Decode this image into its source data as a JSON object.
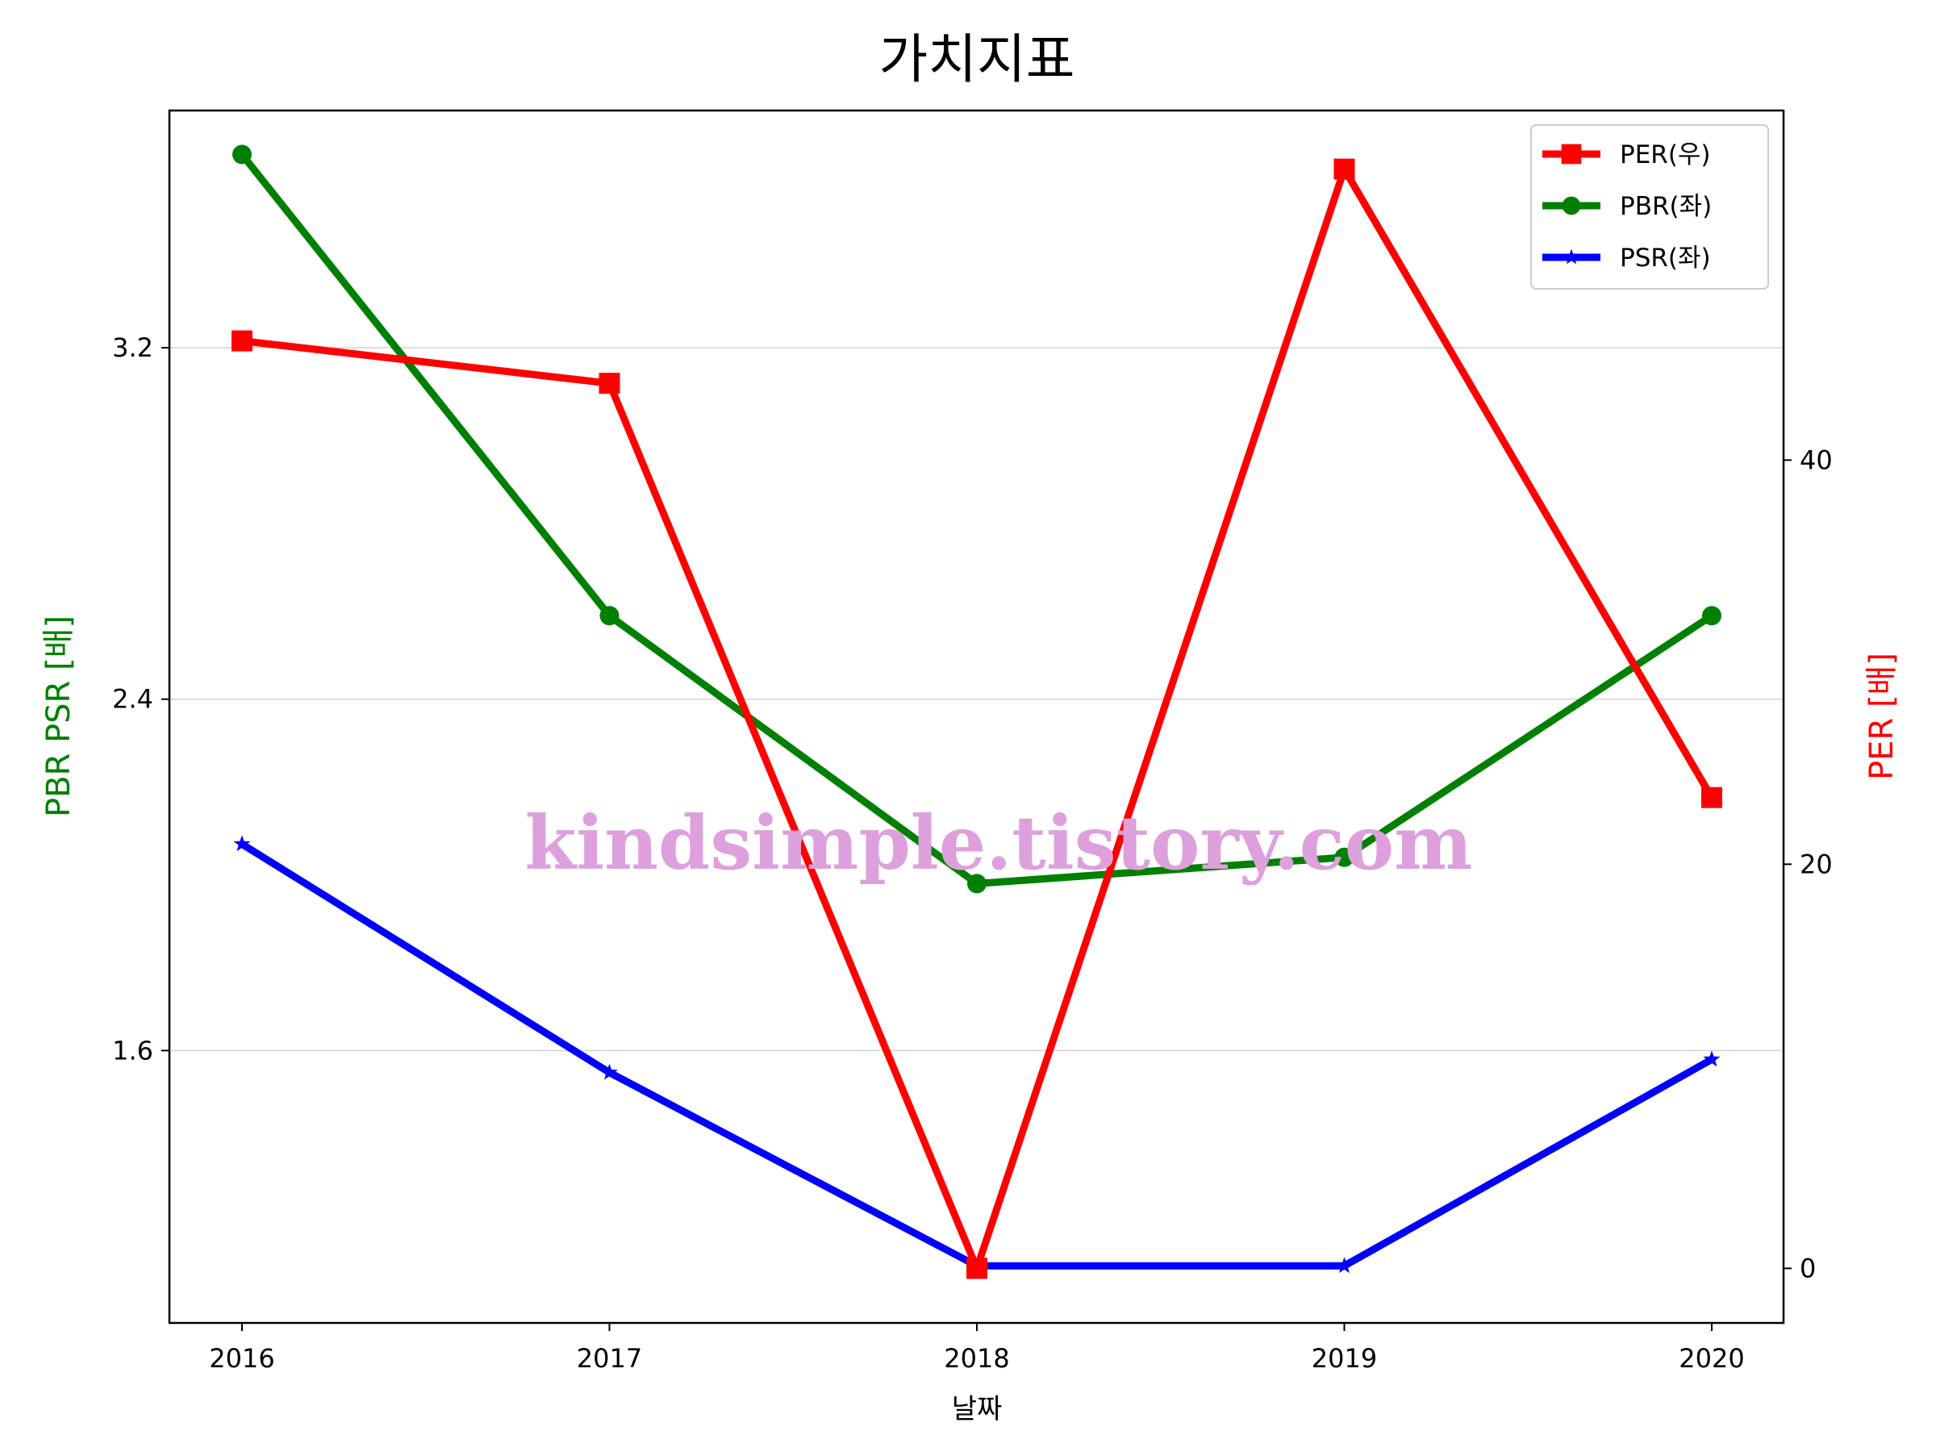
{
  "chart_data": {
    "type": "line",
    "title": "가치지표",
    "xlabel": "날짜",
    "ylabel_left": "PBR PSR [배]",
    "ylabel_right": "PER [배]",
    "categories": [
      "2016",
      "2017",
      "2018",
      "2019",
      "2020"
    ],
    "left_axis": {
      "ylim": [
        0.98,
        3.74
      ],
      "ticks": [
        "1.6",
        "2.4",
        "3.2"
      ],
      "tick_values": [
        1.6,
        2.4,
        3.2
      ],
      "label_color": "#008000"
    },
    "right_axis": {
      "ylim": [
        -2.7,
        57.3
      ],
      "ticks": [
        "0",
        "20",
        "40"
      ],
      "tick_values": [
        0,
        20,
        40
      ],
      "label_color": "#ff0000"
    },
    "series": [
      {
        "name": "PER(우)",
        "axis": "right",
        "color": "#ff0000",
        "marker": "square",
        "values": [
          45.9,
          43.8,
          0.0,
          54.4,
          23.3
        ]
      },
      {
        "name": "PBR(좌)",
        "axis": "left",
        "color": "#008000",
        "marker": "circle",
        "values": [
          3.64,
          2.59,
          1.98,
          2.04,
          2.59
        ]
      },
      {
        "name": "PSR(좌)",
        "axis": "left",
        "color": "#0000ff",
        "marker": "star",
        "values": [
          2.07,
          1.55,
          1.11,
          1.11,
          1.58
        ]
      }
    ],
    "grid": "horizontal (left axis)",
    "legend_position": "upper right",
    "watermark": "kindsimple.tistory.com",
    "watermark_color": "#dda0dd"
  }
}
